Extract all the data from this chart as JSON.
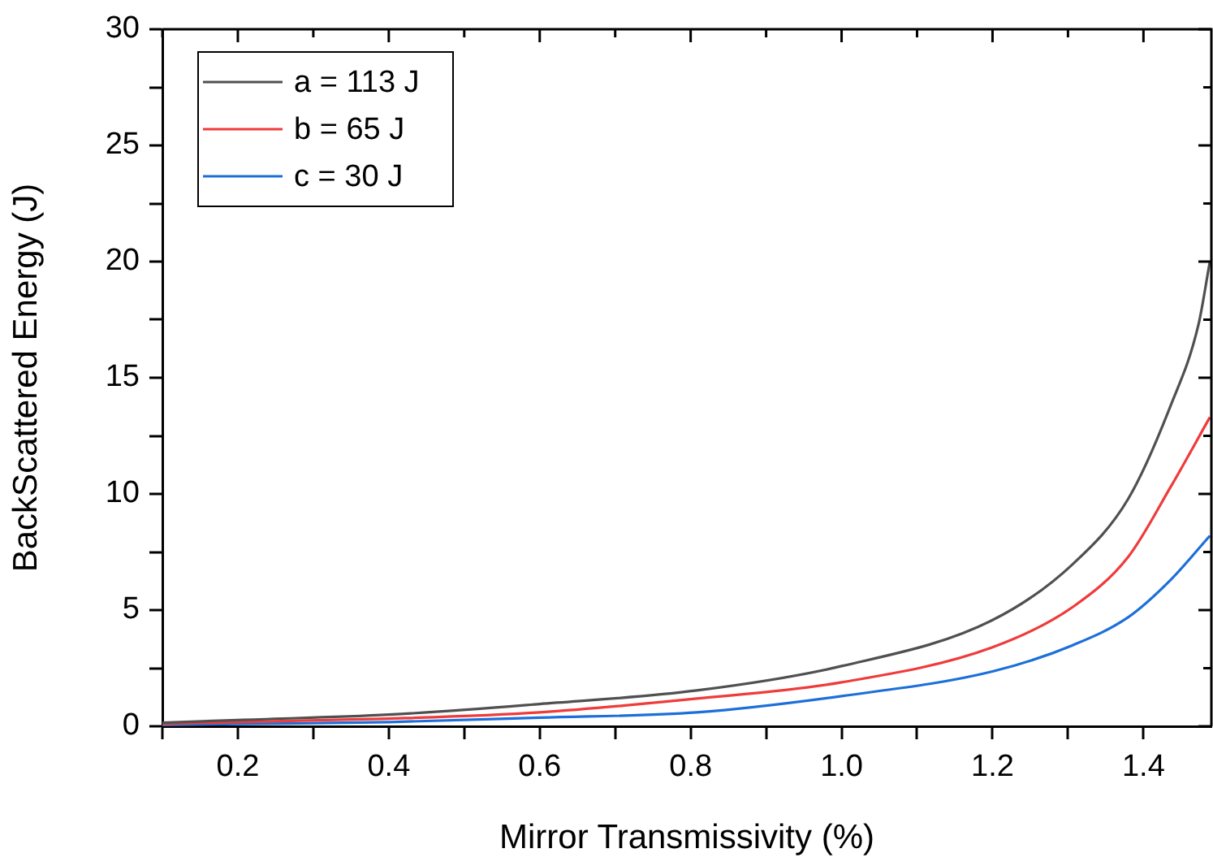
{
  "chart_data": {
    "type": "line",
    "xlabel": "Mirror Transmissivity (%)",
    "ylabel": "BackScattered Energy (J)",
    "xlim": [
      0.1,
      1.49
    ],
    "ylim": [
      0,
      30
    ],
    "xticks": [
      {
        "value": 0.1,
        "label": null
      },
      0.2,
      {
        "value": 0.3,
        "label": null
      },
      0.4,
      {
        "value": 0.5,
        "label": null
      },
      0.6,
      {
        "value": 0.7,
        "label": null
      },
      0.8,
      {
        "value": 0.9,
        "label": null
      },
      {
        "value": 1.0,
        "label": "1.0"
      },
      {
        "value": 1.1,
        "label": null
      },
      1.2,
      {
        "value": 1.3,
        "label": null
      },
      1.4
    ],
    "yticks": [
      0,
      {
        "value": 2.5,
        "label": null
      },
      5,
      {
        "value": 7.5,
        "label": null
      },
      10,
      {
        "value": 12.5,
        "label": null
      },
      15,
      {
        "value": 17.5,
        "label": null
      },
      20,
      {
        "value": 22.5,
        "label": null
      },
      25,
      {
        "value": 27.5,
        "label": null
      },
      30
    ],
    "grid": false,
    "legend": "top left",
    "marker": "none",
    "line_style": "solid",
    "series": [
      {
        "name": "a = 113 J",
        "color": "#505050",
        "x": [
          0.1,
          0.2,
          0.4,
          0.6,
          0.808,
          1.0,
          1.2,
          1.307,
          1.38,
          1.436,
          1.473,
          1.488
        ],
        "values": [
          0.15,
          0.27,
          0.5,
          0.96,
          1.54,
          2.59,
          4.57,
          7.0,
          9.8,
          13.8,
          17.3,
          20.0
        ]
      },
      {
        "name": "b = 65 J",
        "color": "#ef3b3b",
        "x": [
          0.1,
          0.2,
          0.4,
          0.6,
          0.808,
          1.0,
          1.2,
          1.307,
          1.38,
          1.436,
          1.488
        ],
        "values": [
          0.1,
          0.18,
          0.33,
          0.6,
          1.19,
          1.89,
          3.4,
          5.15,
          7.3,
          10.3,
          13.3
        ]
      },
      {
        "name": "c = 30 J",
        "color": "#1c6fd9",
        "x": [
          0.1,
          0.2,
          0.4,
          0.6,
          0.808,
          1.0,
          1.2,
          1.307,
          1.38,
          1.436,
          1.488
        ],
        "values": [
          0.06,
          0.1,
          0.18,
          0.37,
          0.6,
          1.3,
          2.36,
          3.5,
          4.7,
          6.3,
          8.2
        ]
      }
    ]
  }
}
